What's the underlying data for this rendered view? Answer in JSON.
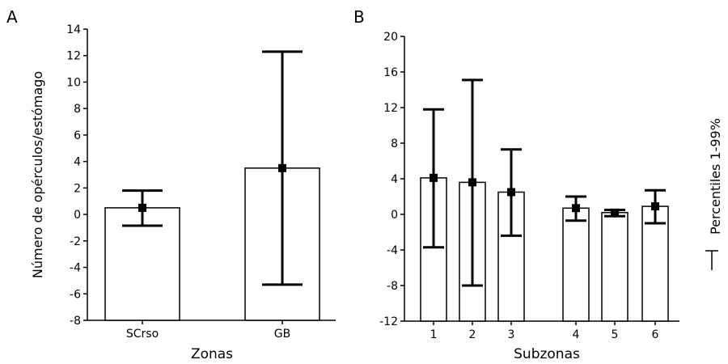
{
  "chart_data": [
    {
      "panel": "A",
      "type": "bar",
      "xlabel": "Zonas",
      "ylabel": "Número de opérculos/estómago",
      "ylim": [
        -8,
        14
      ],
      "yticks": [
        14,
        12,
        10,
        8,
        6,
        4,
        2,
        0,
        -2,
        -4,
        -6,
        -8
      ],
      "categories": [
        "SCrso",
        "GB"
      ],
      "values": [
        0.5,
        3.5
      ],
      "error_low": [
        -0.85,
        -5.3
      ],
      "error_high": [
        1.8,
        12.3
      ]
    },
    {
      "panel": "B",
      "type": "bar",
      "xlabel": "Subzonas",
      "ylim": [
        -12,
        20
      ],
      "yticks": [
        20,
        16,
        12,
        8,
        4,
        0,
        -4,
        -8,
        -12
      ],
      "categories": [
        "1",
        "2",
        "3",
        "4",
        "5",
        "6"
      ],
      "values": [
        4.1,
        3.6,
        2.5,
        0.7,
        0.2,
        0.9
      ],
      "error_low": [
        -3.7,
        -8.0,
        -2.4,
        -0.7,
        -0.2,
        -1.0
      ],
      "error_high": [
        11.8,
        15.1,
        7.3,
        2.0,
        0.5,
        2.7
      ]
    }
  ],
  "legend": {
    "label": "Percentiles 1-99%",
    "symbol": "error-bar-icon"
  }
}
